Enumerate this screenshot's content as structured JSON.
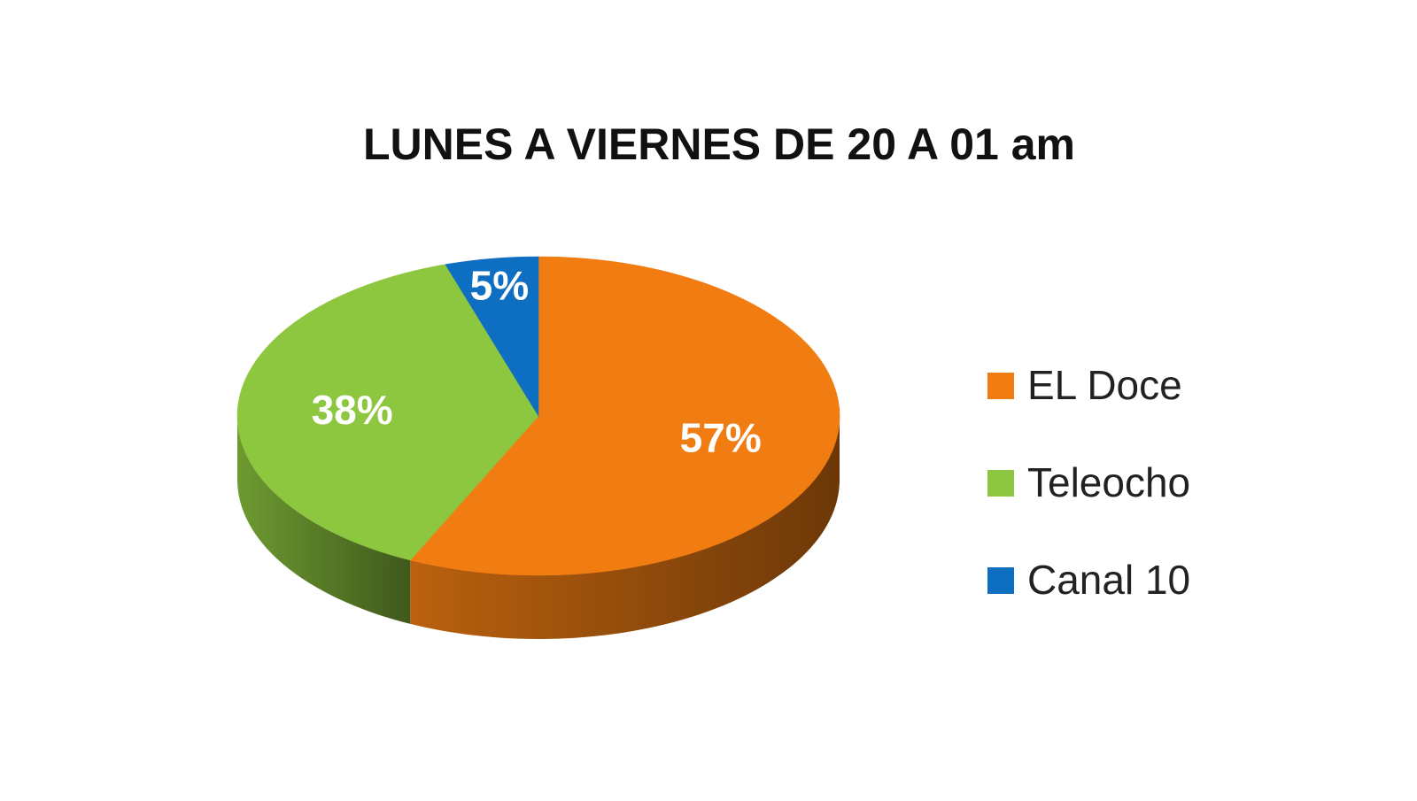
{
  "chart_data": {
    "type": "pie",
    "title": "LUNES A VIERNES DE 20 A 01 am",
    "categories": [
      "EL Doce",
      "Teleocho",
      "Canal 10"
    ],
    "values": [
      57,
      38,
      5
    ],
    "data_labels": [
      "57%",
      "38%",
      "5%"
    ],
    "colors": [
      "#f07c12",
      "#8dc63f",
      "#0e6fc2"
    ],
    "legend": {
      "placement": "right",
      "entries": [
        "EL Doce",
        "Teleocho",
        "Canal 10"
      ]
    },
    "style": "3d"
  }
}
